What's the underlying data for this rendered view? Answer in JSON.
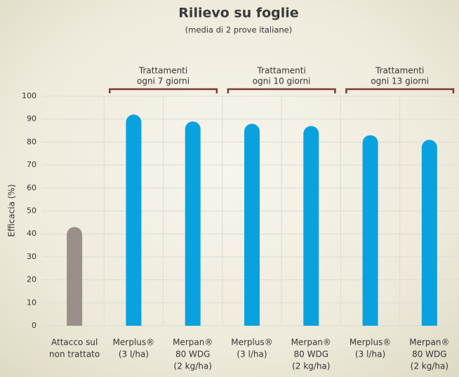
{
  "chart_data": {
    "type": "bar",
    "title": "Rilievo su foglie",
    "subtitle": "(media di 2 prove italiane)",
    "y_label": "Efficacia (%)",
    "categories": [
      [
        "Attacco sul",
        "non trattato"
      ],
      [
        "Merplus®",
        "(3 l/ha)"
      ],
      [
        "Merpan®",
        "80 WDG",
        "(2 kg/ha)"
      ],
      [
        "Merplus®",
        "(3 l/ha)"
      ],
      [
        "Merpan®",
        "80 WDG",
        "(2 kg/ha)"
      ],
      [
        "Merplus®",
        "(3 l/ha)"
      ],
      [
        "Merpan®",
        "80 WDG",
        "(2 kg/ha)"
      ]
    ],
    "values": [
      43,
      92,
      89,
      88,
      87,
      83,
      81
    ],
    "colors": [
      "#9b8f89",
      "#0aa2de",
      "#0aa2de",
      "#0aa2de",
      "#0aa2de",
      "#0aa2de",
      "#0aa2de"
    ],
    "groups": [
      [
        "Trattamenti",
        "ogni 7 giorni"
      ],
      [
        "Trattamenti",
        "ogni 10 giorni"
      ],
      [
        "Trattamenti",
        "ogni 13 giorni"
      ]
    ],
    "ylim": [
      0,
      100
    ],
    "yticks": [
      0,
      10,
      20,
      30,
      40,
      50,
      60,
      70,
      80,
      90,
      100
    ],
    "grid": true
  }
}
